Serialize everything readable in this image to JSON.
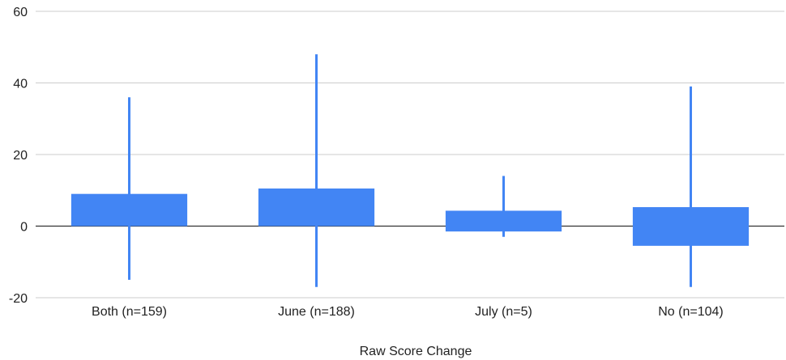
{
  "chart_data": {
    "type": "candlestick",
    "title": "",
    "xlabel": "Raw Score Change",
    "ylabel": "",
    "ylim": [
      -20,
      60
    ],
    "yticks": [
      -20,
      0,
      20,
      40,
      60
    ],
    "grid": true,
    "legend": "none",
    "colors": {
      "box": "#4285f4",
      "grid": "#cccccc",
      "zero_line": "#333333",
      "text": "#222222"
    },
    "categories": [
      "Both (n=159)",
      "June (n=188)",
      "July (n=5)",
      "No (n=104)"
    ],
    "series": [
      {
        "low": [
          -15,
          -17,
          -3,
          -17
        ],
        "box_low": [
          0,
          0,
          -1.5,
          -5.5
        ],
        "box_high": [
          9,
          10.5,
          4.3,
          5.3
        ],
        "high": [
          36,
          48,
          14,
          39
        ]
      }
    ]
  }
}
